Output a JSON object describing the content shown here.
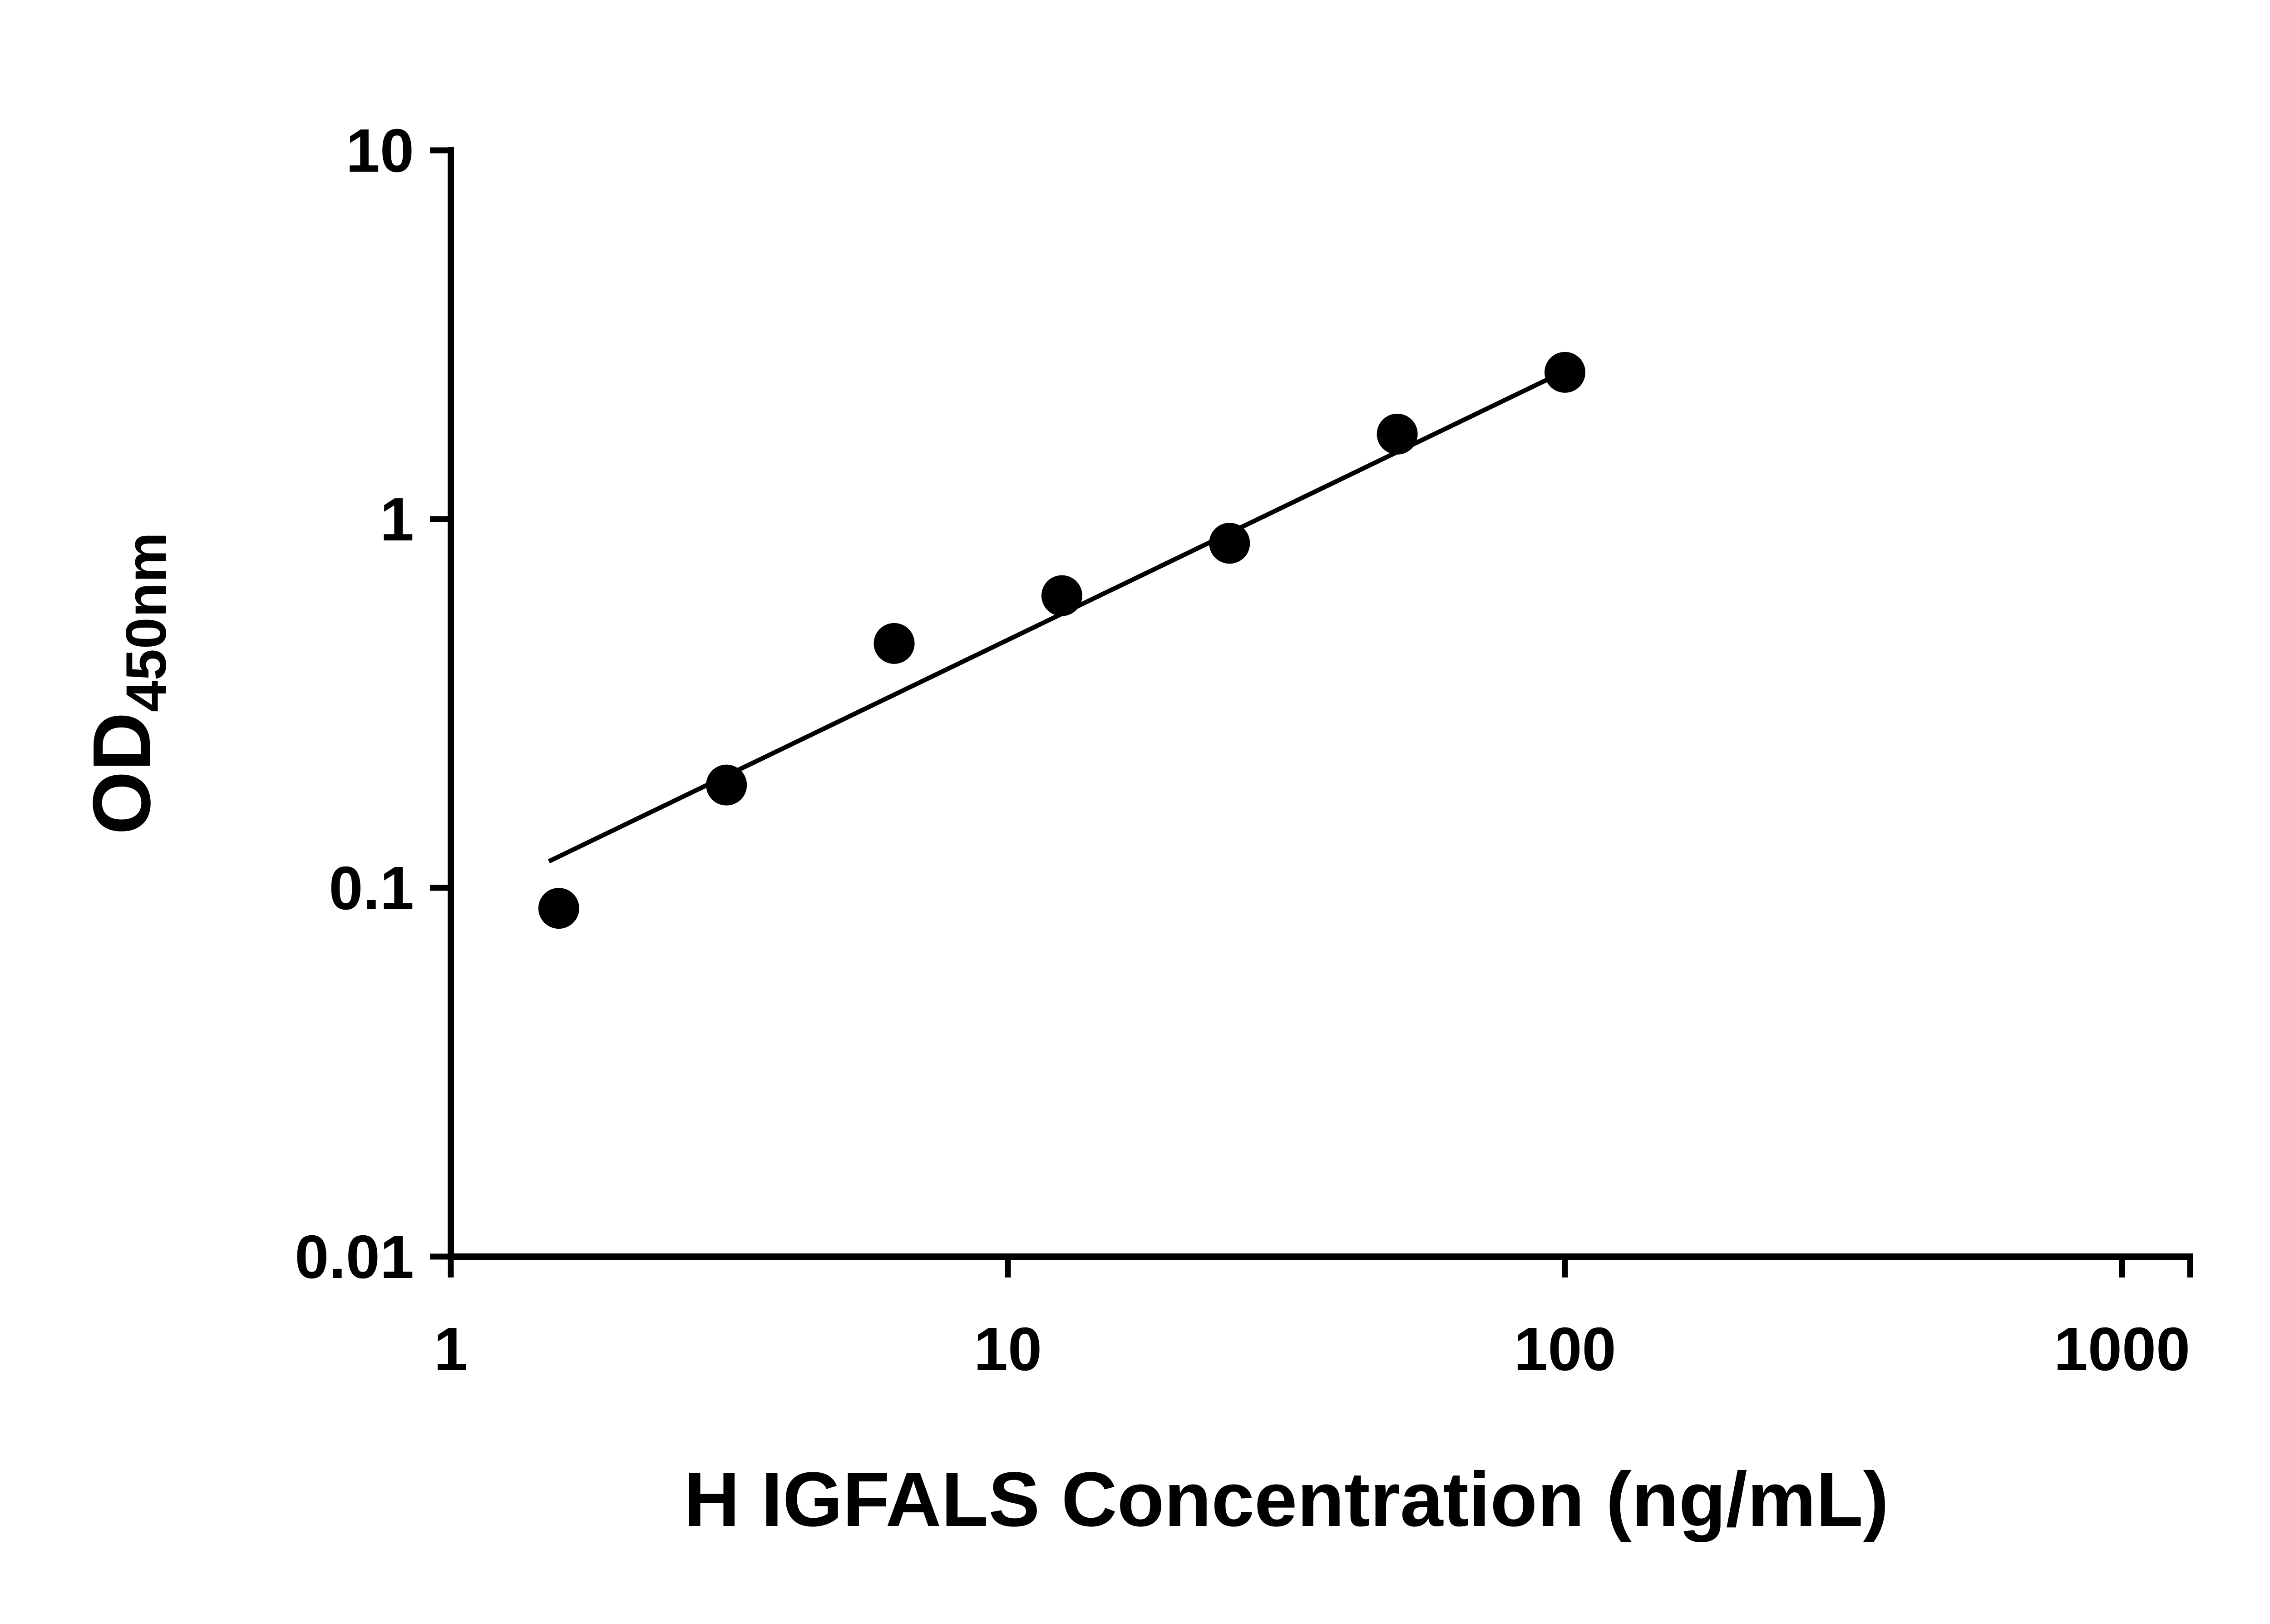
{
  "figure": {
    "description": "ELISA standard curve: log-log scatter plot of optical density versus protein concentration with a straight power-fit trend line"
  },
  "chart_data": {
    "type": "scatter",
    "title": "",
    "xlabel": "H IGFALS Concentration (ng/mL)",
    "ylabel_main": "OD",
    "ylabel_sub": "450nm",
    "x_scale": "log",
    "y_scale": "log",
    "xlim": [
      1,
      1000
    ],
    "ylim": [
      0.01,
      10
    ],
    "grid": false,
    "legend": "none",
    "x_ticks": [
      {
        "value": 1,
        "label": "1"
      },
      {
        "value": 10,
        "label": "10"
      },
      {
        "value": 100,
        "label": "100"
      },
      {
        "value": 1000,
        "label": "1000"
      }
    ],
    "y_ticks": [
      {
        "value": 10,
        "label": "10"
      },
      {
        "value": 1,
        "label": "1"
      },
      {
        "value": 0.1,
        "label": "0.1"
      },
      {
        "value": 0.01,
        "label": "0.01"
      }
    ],
    "points": [
      {
        "x": 1.5625,
        "od": 0.088
      },
      {
        "x": 3.125,
        "od": 0.19
      },
      {
        "x": 6.25,
        "od": 0.46
      },
      {
        "x": 12.5,
        "od": 0.62
      },
      {
        "x": 25,
        "od": 0.86
      },
      {
        "x": 50,
        "od": 1.7
      },
      {
        "x": 100,
        "od": 2.5
      }
    ],
    "trend_line": {
      "x1": 1.5,
      "y1": 0.118,
      "x2": 100,
      "y2": 2.52
    },
    "marker": {
      "shape": "circle",
      "color": "#000000"
    },
    "colors": {
      "axis": "#000000",
      "line": "#000000",
      "marker": "#000000",
      "background": "#ffffff"
    }
  }
}
